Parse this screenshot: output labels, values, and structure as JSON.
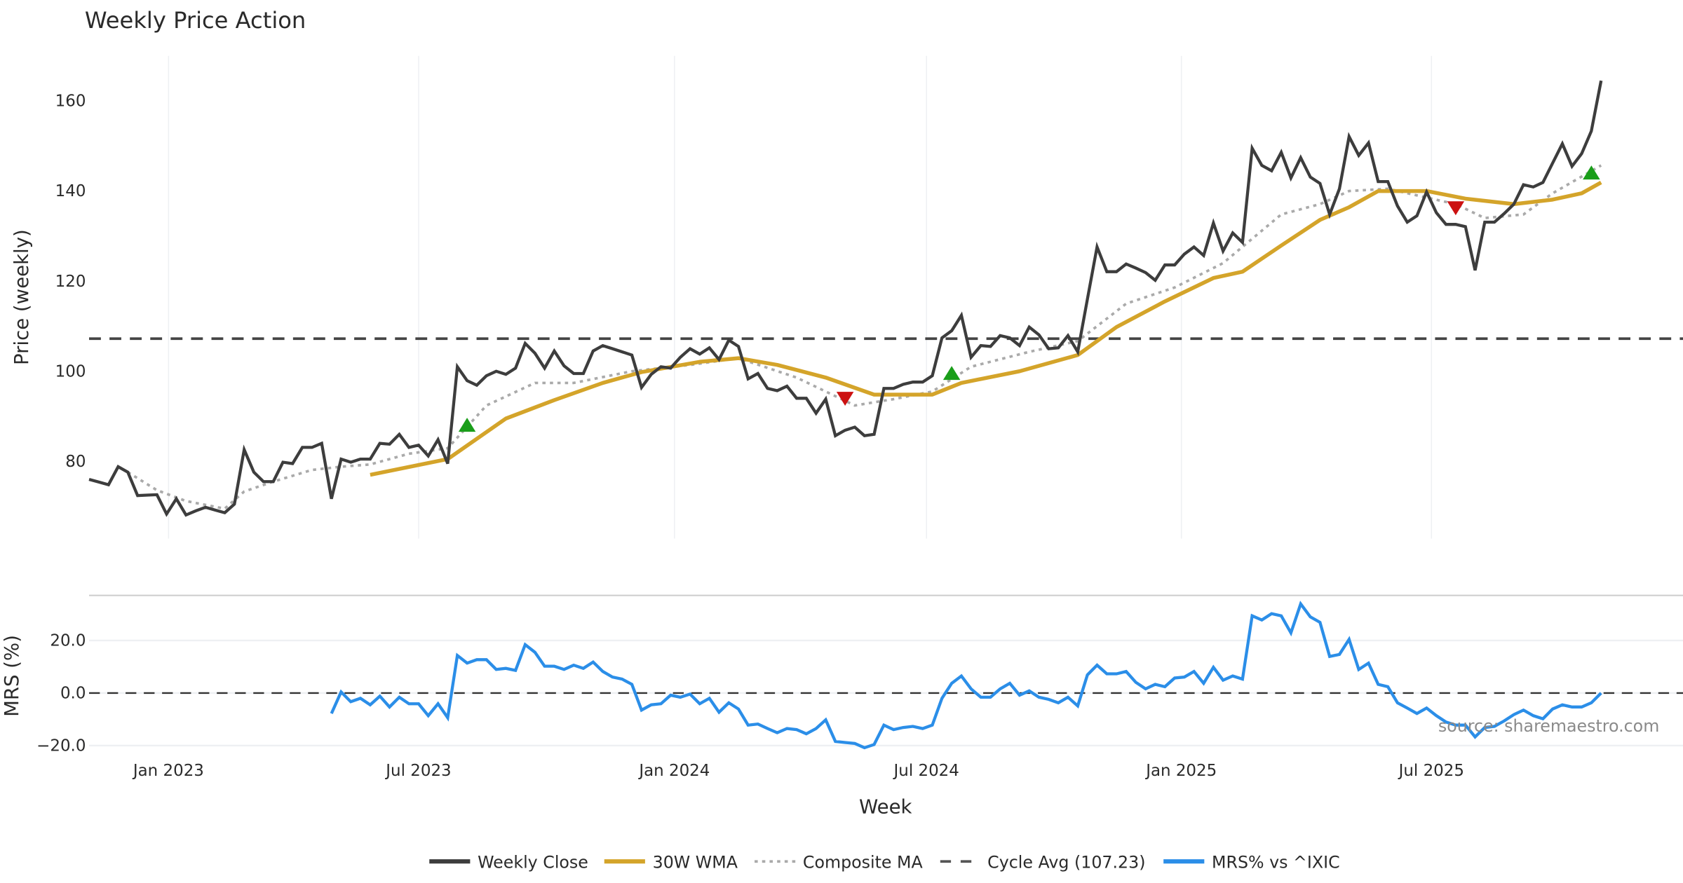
{
  "chart_data": [
    {
      "type": "line",
      "title": "Weekly Price Action",
      "xlabel": "Week",
      "ylabel": "Price (weekly)",
      "x_unit": "weeks from first data point",
      "ylim": [
        62,
        170
      ],
      "yticks": [
        80,
        100,
        120,
        140,
        160
      ],
      "xticks": [
        {
          "week": 8.2,
          "label": "Jan 2023"
        },
        {
          "week": 34.0,
          "label": "Jul 2023"
        },
        {
          "week": 60.4,
          "label": "Jan 2024"
        },
        {
          "week": 86.4,
          "label": "Jul 2024"
        },
        {
          "week": 112.7,
          "label": "Jan 2025"
        },
        {
          "week": 138.5,
          "label": "Jul 2025"
        }
      ],
      "grid": true,
      "series": [
        {
          "name": "Weekly Close",
          "color": "#3d3d3d",
          "start_week": 0,
          "values": [
            76.0,
            75.4,
            74.8,
            78.8,
            77.6,
            72.4,
            72.5,
            72.6,
            68.3,
            71.7,
            68.1,
            69.0,
            69.8,
            69.2,
            68.6,
            70.5,
            82.6,
            77.6,
            75.5,
            75.5,
            79.8,
            79.5,
            83.1,
            83.1,
            84.0,
            71.7,
            80.5,
            79.8,
            80.5,
            80.5,
            84.0,
            83.8,
            86.0,
            83.1,
            83.6,
            81.2,
            84.8,
            79.5,
            101.0,
            97.9,
            96.9,
            99.0,
            100.0,
            99.3,
            100.7,
            106.2,
            104.0,
            100.7,
            104.5,
            101.2,
            99.5,
            99.5,
            104.5,
            105.7,
            105.0,
            104.3,
            103.6,
            96.4,
            99.3,
            101.0,
            100.7,
            103.1,
            105.0,
            103.8,
            105.2,
            102.6,
            106.9,
            105.5,
            98.3,
            99.5,
            96.2,
            95.7,
            96.7,
            94.0,
            94.0,
            90.7,
            93.8,
            85.7,
            86.9,
            87.6,
            85.7,
            86.0,
            96.2,
            96.2,
            97.1,
            97.6,
            97.6,
            99.0,
            107.4,
            109.0,
            112.4,
            103.1,
            105.7,
            105.5,
            107.9,
            107.4,
            105.7,
            109.8,
            108.1,
            105.0,
            105.2,
            107.9,
            104.3,
            116.0,
            127.6,
            122.1,
            122.1,
            123.8,
            122.9,
            121.9,
            120.2,
            123.6,
            123.6,
            126.0,
            127.6,
            125.7,
            132.9,
            126.7,
            130.7,
            128.6,
            149.5,
            145.7,
            144.5,
            148.6,
            142.9,
            147.4,
            143.1,
            141.7,
            134.8,
            140.5,
            152.1,
            147.9,
            150.7,
            142.1,
            142.1,
            136.7,
            133.1,
            134.5,
            139.8,
            135.2,
            132.6,
            132.6,
            132.1,
            122.4,
            133.1,
            133.1,
            135.0,
            137.1,
            141.4,
            140.9,
            141.9,
            146.2,
            150.5,
            145.5,
            148.3,
            153.3,
            164.5
          ]
        },
        {
          "name": "30W WMA",
          "color": "#d4a42a",
          "points": [
            [
              29,
              77.0
            ],
            [
              37,
              80.5
            ],
            [
              43,
              89.5
            ],
            [
              48,
              93.6
            ],
            [
              53,
              97.4
            ],
            [
              57,
              99.8
            ],
            [
              63,
              102.1
            ],
            [
              67,
              102.9
            ],
            [
              71,
              101.4
            ],
            [
              76,
              98.6
            ],
            [
              81,
              94.8
            ],
            [
              87,
              94.8
            ],
            [
              90,
              97.4
            ],
            [
              96,
              100.0
            ],
            [
              102,
              103.6
            ],
            [
              106,
              109.8
            ],
            [
              111,
              115.5
            ],
            [
              116,
              120.7
            ],
            [
              119,
              122.1
            ],
            [
              123,
              127.9
            ],
            [
              127,
              133.6
            ],
            [
              130,
              136.4
            ],
            [
              133,
              140.0
            ],
            [
              138,
              140.0
            ],
            [
              142,
              138.3
            ],
            [
              147,
              137.1
            ],
            [
              151,
              138.1
            ],
            [
              154,
              139.5
            ],
            [
              156,
              141.9
            ]
          ]
        },
        {
          "name": "Composite MA",
          "color": "#aaaaaa",
          "points": [
            [
              4,
              77.6
            ],
            [
              7,
              73.6
            ],
            [
              10,
              71.2
            ],
            [
              14,
              69.5
            ],
            [
              16,
              73.3
            ],
            [
              19,
              75.5
            ],
            [
              23,
              78.1
            ],
            [
              26,
              78.8
            ],
            [
              29,
              79.3
            ],
            [
              33,
              81.7
            ],
            [
              37,
              82.9
            ],
            [
              41,
              92.4
            ],
            [
              46,
              97.4
            ],
            [
              50,
              97.4
            ],
            [
              56,
              100.0
            ],
            [
              62,
              101.4
            ],
            [
              67,
              102.9
            ],
            [
              73,
              98.6
            ],
            [
              79,
              92.4
            ],
            [
              83,
              93.8
            ],
            [
              87,
              95.5
            ],
            [
              91,
              101.0
            ],
            [
              97,
              104.3
            ],
            [
              102,
              106.7
            ],
            [
              107,
              115.0
            ],
            [
              112,
              118.6
            ],
            [
              117,
              124.0
            ],
            [
              123,
              134.8
            ],
            [
              127,
              137.1
            ],
            [
              130,
              140.0
            ],
            [
              134,
              140.5
            ],
            [
              141,
              137.1
            ],
            [
              144,
              134.0
            ],
            [
              148,
              134.8
            ],
            [
              151,
              139.5
            ],
            [
              156,
              145.7
            ]
          ]
        },
        {
          "name": "Cycle Avg (107.23)",
          "color": "#444444",
          "value": 107.23
        }
      ],
      "signals": [
        {
          "type": "buy",
          "week": 39,
          "value": 88.0,
          "color": "#1a9e1a"
        },
        {
          "type": "sell",
          "week": 78,
          "value": 94.0,
          "color": "#cc1111"
        },
        {
          "type": "buy",
          "week": 89,
          "value": 99.5,
          "color": "#1a9e1a"
        },
        {
          "type": "sell",
          "week": 141,
          "value": 136.3,
          "color": "#cc1111"
        },
        {
          "type": "buy",
          "week": 155,
          "value": 144.0,
          "color": "#1a9e1a"
        }
      ]
    },
    {
      "type": "line",
      "ylabel": "MRS (%)",
      "ylim": [
        -22,
        36
      ],
      "yticks": [
        {
          "v": 20,
          "label": "20.0"
        },
        {
          "v": 0,
          "label": "0.0"
        },
        {
          "v": -20,
          "label": "−20.0"
        }
      ],
      "series": [
        {
          "name": "MRS% vs ^IXIC",
          "color": "#2b8ee8",
          "start_week": 25,
          "values": [
            -7.8,
            0.4,
            -3.3,
            -2.0,
            -4.5,
            -1.2,
            -5.3,
            -1.6,
            -4.1,
            -4.1,
            -8.6,
            -4.1,
            -9.4,
            14.3,
            11.4,
            12.7,
            12.7,
            9.0,
            9.4,
            8.6,
            18.4,
            15.5,
            10.2,
            10.2,
            9.0,
            10.6,
            9.4,
            11.8,
            8.2,
            6.1,
            5.3,
            3.3,
            -6.5,
            -4.5,
            -4.1,
            -0.8,
            -1.6,
            -0.4,
            -4.1,
            -2.0,
            -7.3,
            -3.7,
            -6.1,
            -12.2,
            -11.8,
            -13.5,
            -15.1,
            -13.5,
            -13.9,
            -15.5,
            -13.5,
            -10.2,
            -18.4,
            -18.8,
            -19.2,
            -20.8,
            -19.6,
            -12.2,
            -13.9,
            -13.1,
            -12.7,
            -13.5,
            -12.2,
            -2.0,
            3.7,
            6.5,
            1.6,
            -1.6,
            -1.6,
            1.6,
            3.7,
            -0.8,
            0.8,
            -1.6,
            -2.4,
            -3.7,
            -1.6,
            -4.9,
            6.9,
            10.6,
            7.3,
            7.3,
            8.2,
            4.1,
            1.6,
            3.3,
            2.4,
            5.7,
            6.1,
            8.2,
            3.7,
            9.8,
            4.9,
            6.5,
            5.3,
            29.4,
            27.8,
            30.2,
            29.4,
            22.9,
            33.9,
            29.0,
            26.9,
            13.9,
            14.7,
            20.4,
            9.0,
            11.4,
            3.3,
            2.4,
            -3.7,
            -5.7,
            -7.8,
            -5.7,
            -8.6,
            -11.0,
            -12.2,
            -12.2,
            -16.7,
            -13.1,
            -12.7,
            -10.6,
            -8.2,
            -6.5,
            -8.6,
            -9.8,
            -6.1,
            -4.5,
            -5.3,
            -5.3,
            -3.7,
            0.0
          ]
        }
      ],
      "reference_line": 0
    }
  ],
  "source": "source: sharemaestro.com",
  "legend": [
    {
      "label": "Weekly Close",
      "style": "solid",
      "color": "#3d3d3d"
    },
    {
      "label": "30W WMA",
      "style": "solid",
      "color": "#d4a42a"
    },
    {
      "label": "Composite MA",
      "style": "dotted",
      "color": "#aaaaaa"
    },
    {
      "label": "Cycle Avg (107.23)",
      "style": "dashed",
      "color": "#555555"
    },
    {
      "label": "MRS% vs ^IXIC",
      "style": "solid",
      "color": "#2b8ee8"
    }
  ],
  "legend_position": "bottom-center"
}
